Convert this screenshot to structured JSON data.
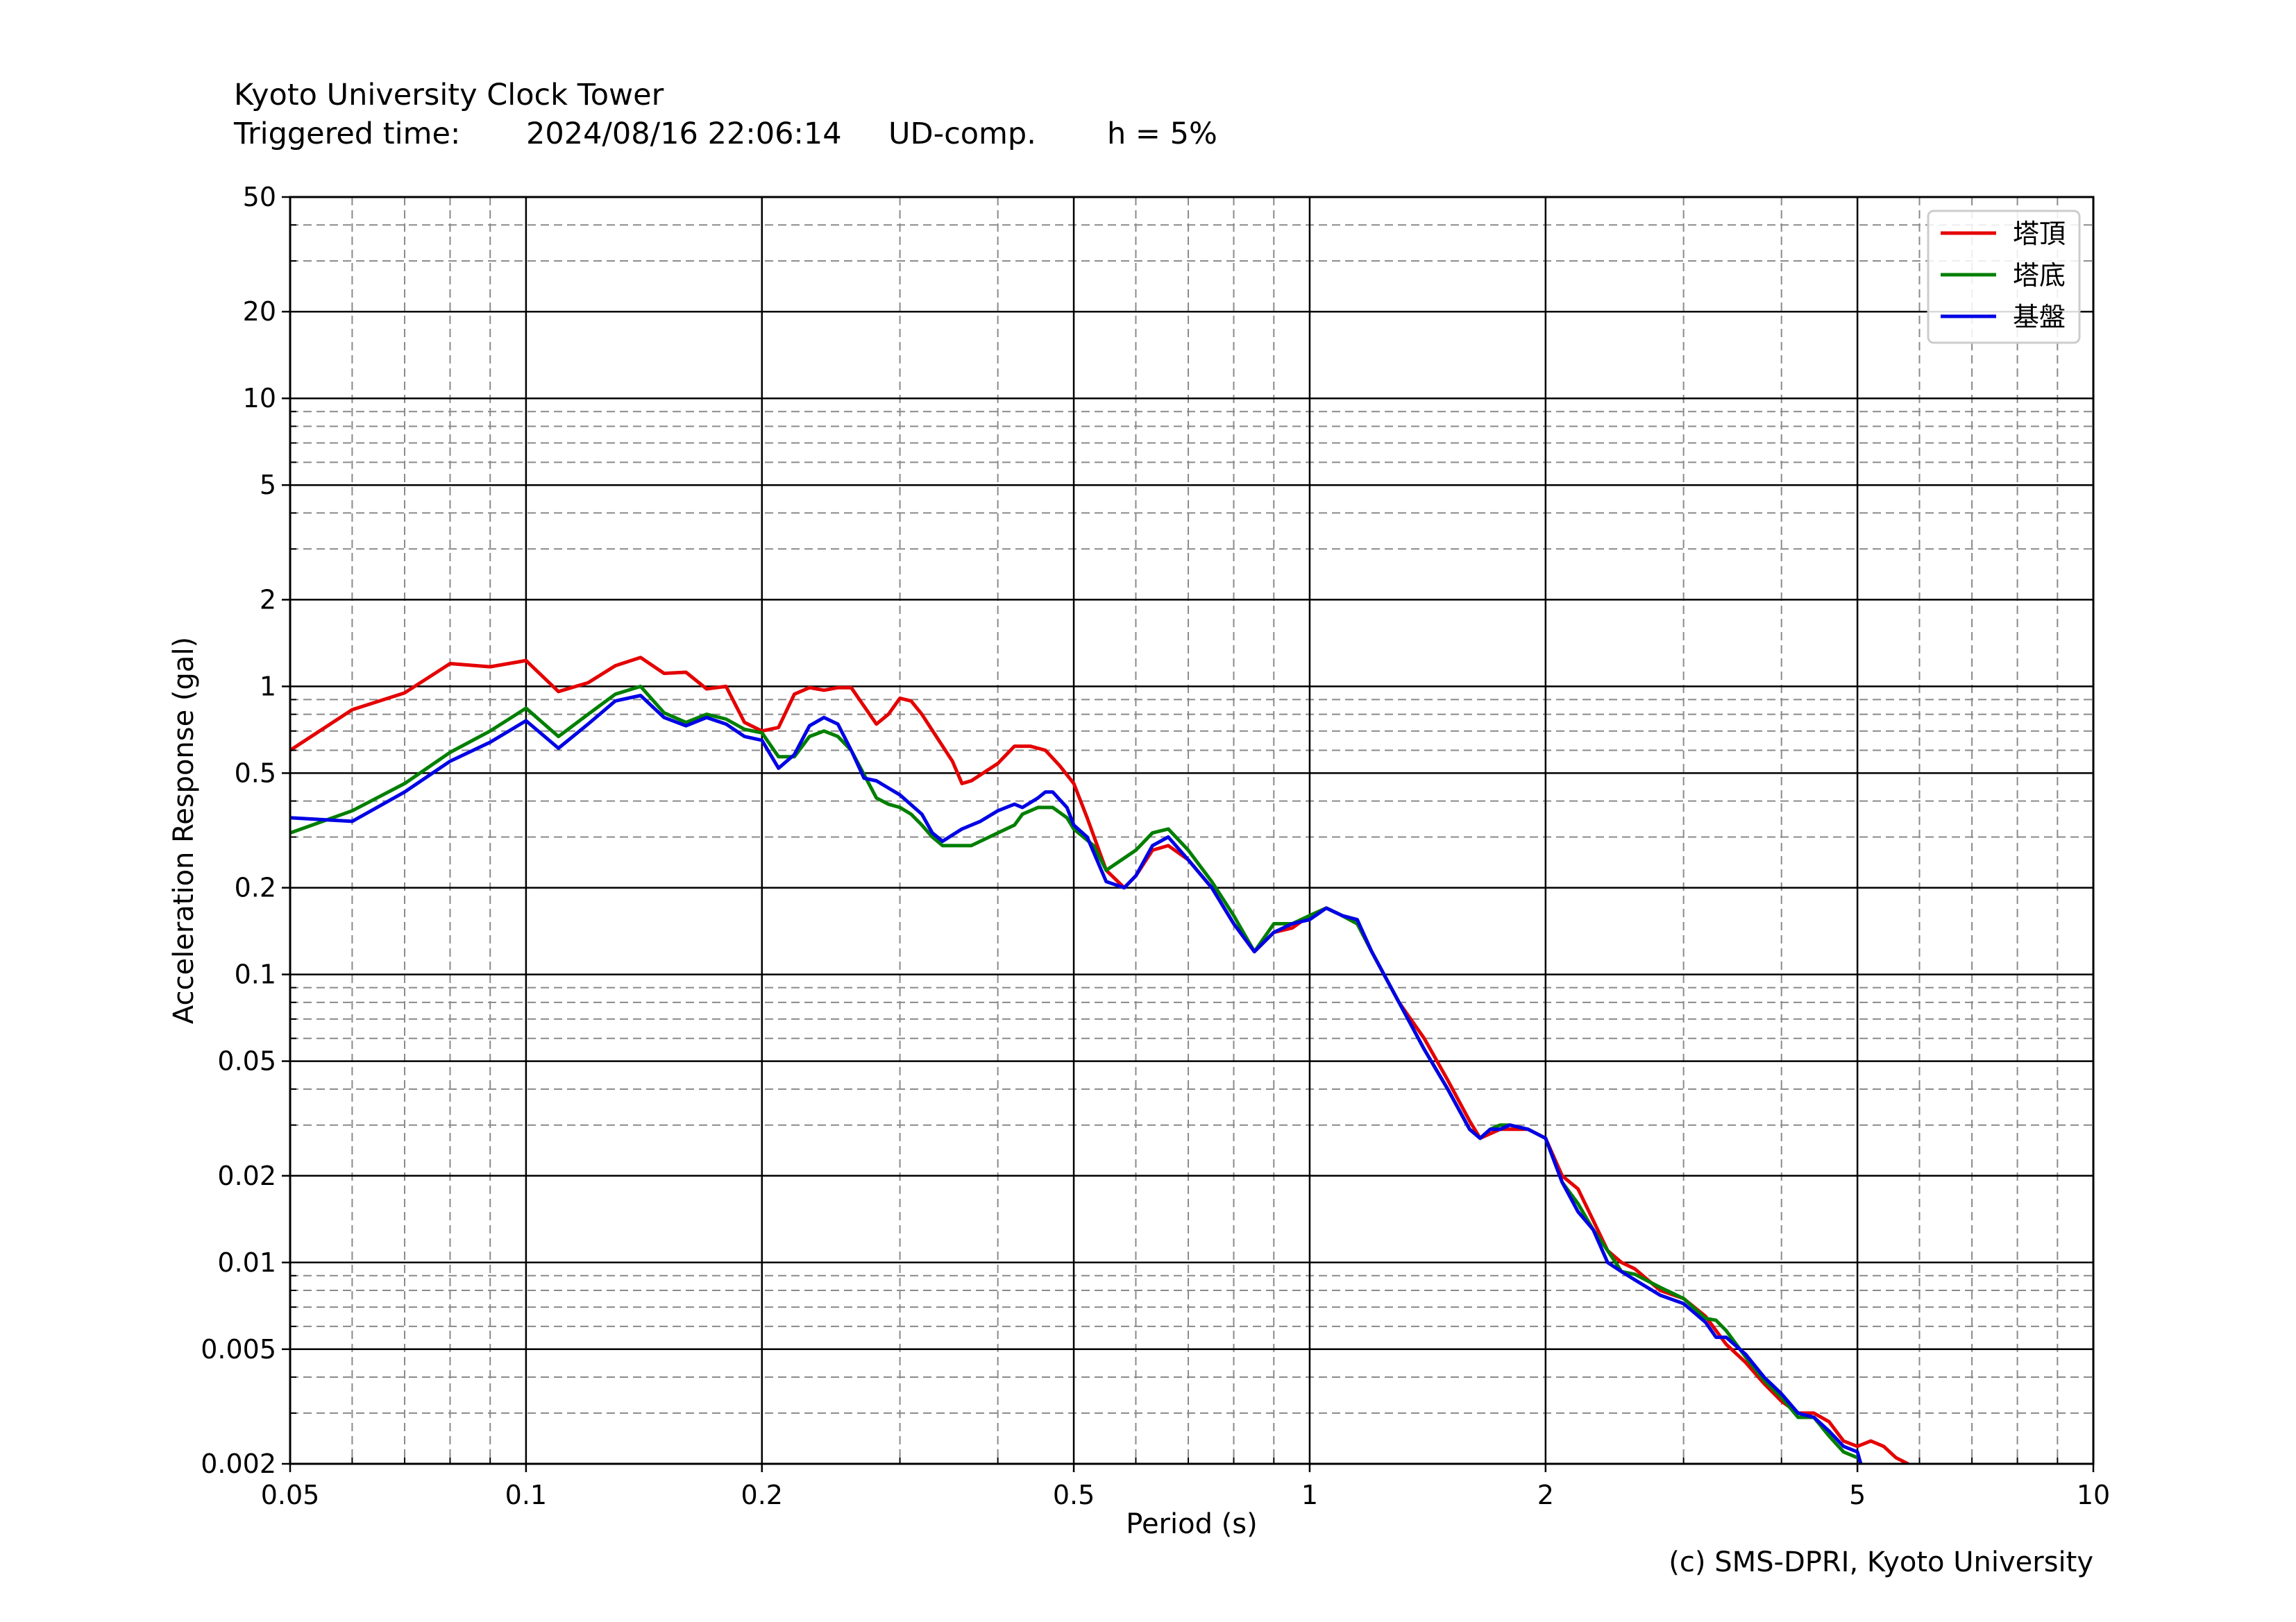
{
  "header": {
    "station": "Kyoto University Clock Tower",
    "triggered_label": "Triggered time:",
    "triggered_time": "2024/08/16 22:06:14",
    "component": "UD-comp.",
    "damping": "h = 5%"
  },
  "credit": "(c) SMS-DPRI, Kyoto University",
  "chart_data": {
    "type": "line",
    "title": "Kyoto University Clock Tower",
    "xlabel": "Period (s)",
    "ylabel": "Acceleration Response (gal)",
    "xscale": "log",
    "yscale": "log",
    "xlim": [
      0.05,
      10
    ],
    "ylim": [
      0.002,
      50
    ],
    "xticks": [
      0.05,
      0.1,
      0.2,
      0.5,
      1,
      2,
      5,
      10
    ],
    "xtick_labels": [
      "0.05",
      "0.1",
      "0.2",
      "0.5",
      "1",
      "2",
      "5",
      "10"
    ],
    "yticks": [
      0.002,
      0.005,
      0.01,
      0.02,
      0.05,
      0.1,
      0.2,
      0.5,
      1,
      2,
      5,
      10,
      20,
      50
    ],
    "ytick_labels": [
      "0.002",
      "0.005",
      "0.01",
      "0.02",
      "0.05",
      "0.1",
      "0.2",
      "0.5",
      "1",
      "2",
      "5",
      "10",
      "20",
      "50"
    ],
    "grid": true,
    "legend": "top-right",
    "series": [
      {
        "name": "塔頂",
        "color": "#e50000",
        "points": [
          [
            0.05,
            0.6
          ],
          [
            0.06,
            0.83
          ],
          [
            0.07,
            0.95
          ],
          [
            0.08,
            1.2
          ],
          [
            0.09,
            1.17
          ],
          [
            0.1,
            1.23
          ],
          [
            0.11,
            0.96
          ],
          [
            0.12,
            1.03
          ],
          [
            0.13,
            1.18
          ],
          [
            0.14,
            1.26
          ],
          [
            0.15,
            1.11
          ],
          [
            0.16,
            1.12
          ],
          [
            0.17,
            0.98
          ],
          [
            0.18,
            1.0
          ],
          [
            0.19,
            0.75
          ],
          [
            0.2,
            0.7
          ],
          [
            0.21,
            0.72
          ],
          [
            0.22,
            0.94
          ],
          [
            0.23,
            0.99
          ],
          [
            0.24,
            0.97
          ],
          [
            0.25,
            0.99
          ],
          [
            0.26,
            0.99
          ],
          [
            0.28,
            0.74
          ],
          [
            0.29,
            0.8
          ],
          [
            0.3,
            0.91
          ],
          [
            0.31,
            0.89
          ],
          [
            0.32,
            0.8
          ],
          [
            0.35,
            0.55
          ],
          [
            0.36,
            0.46
          ],
          [
            0.37,
            0.47
          ],
          [
            0.4,
            0.54
          ],
          [
            0.42,
            0.62
          ],
          [
            0.44,
            0.62
          ],
          [
            0.46,
            0.6
          ],
          [
            0.48,
            0.53
          ],
          [
            0.5,
            0.46
          ],
          [
            0.52,
            0.35
          ],
          [
            0.55,
            0.23
          ],
          [
            0.58,
            0.2
          ],
          [
            0.6,
            0.22
          ],
          [
            0.63,
            0.27
          ],
          [
            0.66,
            0.28
          ],
          [
            0.7,
            0.25
          ],
          [
            0.75,
            0.2
          ],
          [
            0.8,
            0.15
          ],
          [
            0.85,
            0.12
          ],
          [
            0.9,
            0.14
          ],
          [
            0.95,
            0.145
          ],
          [
            1.0,
            0.16
          ],
          [
            1.05,
            0.17
          ],
          [
            1.1,
            0.16
          ],
          [
            1.15,
            0.15
          ],
          [
            1.2,
            0.12
          ],
          [
            1.3,
            0.08
          ],
          [
            1.4,
            0.06
          ],
          [
            1.5,
            0.043
          ],
          [
            1.6,
            0.031
          ],
          [
            1.65,
            0.027
          ],
          [
            1.7,
            0.028
          ],
          [
            1.75,
            0.029
          ],
          [
            1.8,
            0.029
          ],
          [
            1.9,
            0.029
          ],
          [
            2.0,
            0.027
          ],
          [
            2.1,
            0.02
          ],
          [
            2.2,
            0.018
          ],
          [
            2.3,
            0.014
          ],
          [
            2.4,
            0.011
          ],
          [
            2.5,
            0.01
          ],
          [
            2.6,
            0.0095
          ],
          [
            2.8,
            0.008
          ],
          [
            3.0,
            0.0075
          ],
          [
            3.2,
            0.0065
          ],
          [
            3.4,
            0.0052
          ],
          [
            3.6,
            0.0045
          ],
          [
            3.8,
            0.0038
          ],
          [
            4.0,
            0.0033
          ],
          [
            4.2,
            0.003
          ],
          [
            4.4,
            0.003
          ],
          [
            4.6,
            0.0028
          ],
          [
            4.8,
            0.0024
          ],
          [
            5.0,
            0.0023
          ],
          [
            5.2,
            0.0024
          ],
          [
            5.4,
            0.0023
          ],
          [
            5.6,
            0.0021
          ],
          [
            5.8,
            0.002
          ]
        ]
      },
      {
        "name": "塔底",
        "color": "#007f00",
        "points": [
          [
            0.05,
            0.31
          ],
          [
            0.06,
            0.37
          ],
          [
            0.07,
            0.46
          ],
          [
            0.08,
            0.59
          ],
          [
            0.09,
            0.7
          ],
          [
            0.1,
            0.84
          ],
          [
            0.11,
            0.67
          ],
          [
            0.12,
            0.8
          ],
          [
            0.13,
            0.94
          ],
          [
            0.14,
            1.0
          ],
          [
            0.15,
            0.81
          ],
          [
            0.16,
            0.75
          ],
          [
            0.17,
            0.8
          ],
          [
            0.18,
            0.77
          ],
          [
            0.19,
            0.71
          ],
          [
            0.2,
            0.69
          ],
          [
            0.21,
            0.57
          ],
          [
            0.22,
            0.57
          ],
          [
            0.23,
            0.67
          ],
          [
            0.24,
            0.7
          ],
          [
            0.25,
            0.67
          ],
          [
            0.26,
            0.6
          ],
          [
            0.28,
            0.41
          ],
          [
            0.29,
            0.39
          ],
          [
            0.3,
            0.38
          ],
          [
            0.31,
            0.36
          ],
          [
            0.32,
            0.33
          ],
          [
            0.33,
            0.3
          ],
          [
            0.34,
            0.28
          ],
          [
            0.36,
            0.28
          ],
          [
            0.37,
            0.28
          ],
          [
            0.4,
            0.31
          ],
          [
            0.42,
            0.33
          ],
          [
            0.43,
            0.36
          ],
          [
            0.45,
            0.38
          ],
          [
            0.47,
            0.38
          ],
          [
            0.49,
            0.35
          ],
          [
            0.5,
            0.32
          ],
          [
            0.53,
            0.28
          ],
          [
            0.55,
            0.23
          ],
          [
            0.6,
            0.27
          ],
          [
            0.63,
            0.31
          ],
          [
            0.66,
            0.32
          ],
          [
            0.7,
            0.27
          ],
          [
            0.75,
            0.21
          ],
          [
            0.8,
            0.16
          ],
          [
            0.85,
            0.12
          ],
          [
            0.9,
            0.15
          ],
          [
            0.95,
            0.15
          ],
          [
            1.0,
            0.16
          ],
          [
            1.05,
            0.17
          ],
          [
            1.1,
            0.16
          ],
          [
            1.15,
            0.15
          ],
          [
            1.2,
            0.12
          ],
          [
            1.3,
            0.08
          ],
          [
            1.4,
            0.055
          ],
          [
            1.5,
            0.04
          ],
          [
            1.6,
            0.029
          ],
          [
            1.65,
            0.027
          ],
          [
            1.7,
            0.029
          ],
          [
            1.75,
            0.03
          ],
          [
            1.8,
            0.03
          ],
          [
            1.9,
            0.029
          ],
          [
            2.0,
            0.027
          ],
          [
            2.1,
            0.019
          ],
          [
            2.2,
            0.016
          ],
          [
            2.3,
            0.013
          ],
          [
            2.4,
            0.011
          ],
          [
            2.5,
            0.0093
          ],
          [
            2.6,
            0.0091
          ],
          [
            2.8,
            0.0082
          ],
          [
            3.0,
            0.0075
          ],
          [
            3.2,
            0.0064
          ],
          [
            3.3,
            0.0063
          ],
          [
            3.4,
            0.0058
          ],
          [
            3.6,
            0.0047
          ],
          [
            3.8,
            0.0039
          ],
          [
            4.0,
            0.0034
          ],
          [
            4.2,
            0.0029
          ],
          [
            4.4,
            0.0029
          ],
          [
            4.6,
            0.0025
          ],
          [
            4.8,
            0.0022
          ],
          [
            5.0,
            0.0021
          ]
        ]
      },
      {
        "name": "基盤",
        "color": "#0000e5",
        "points": [
          [
            0.05,
            0.35
          ],
          [
            0.06,
            0.34
          ],
          [
            0.07,
            0.43
          ],
          [
            0.08,
            0.55
          ],
          [
            0.09,
            0.64
          ],
          [
            0.1,
            0.76
          ],
          [
            0.11,
            0.61
          ],
          [
            0.12,
            0.74
          ],
          [
            0.13,
            0.89
          ],
          [
            0.14,
            0.93
          ],
          [
            0.15,
            0.78
          ],
          [
            0.16,
            0.73
          ],
          [
            0.17,
            0.78
          ],
          [
            0.18,
            0.74
          ],
          [
            0.19,
            0.67
          ],
          [
            0.2,
            0.65
          ],
          [
            0.21,
            0.52
          ],
          [
            0.22,
            0.58
          ],
          [
            0.23,
            0.73
          ],
          [
            0.24,
            0.78
          ],
          [
            0.25,
            0.74
          ],
          [
            0.26,
            0.6
          ],
          [
            0.27,
            0.48
          ],
          [
            0.28,
            0.47
          ],
          [
            0.3,
            0.42
          ],
          [
            0.32,
            0.36
          ],
          [
            0.33,
            0.31
          ],
          [
            0.34,
            0.29
          ],
          [
            0.36,
            0.32
          ],
          [
            0.38,
            0.34
          ],
          [
            0.4,
            0.37
          ],
          [
            0.42,
            0.39
          ],
          [
            0.43,
            0.38
          ],
          [
            0.45,
            0.41
          ],
          [
            0.46,
            0.43
          ],
          [
            0.47,
            0.43
          ],
          [
            0.49,
            0.38
          ],
          [
            0.5,
            0.33
          ],
          [
            0.52,
            0.3
          ],
          [
            0.55,
            0.21
          ],
          [
            0.58,
            0.2
          ],
          [
            0.6,
            0.22
          ],
          [
            0.63,
            0.28
          ],
          [
            0.66,
            0.3
          ],
          [
            0.7,
            0.25
          ],
          [
            0.75,
            0.2
          ],
          [
            0.8,
            0.15
          ],
          [
            0.85,
            0.12
          ],
          [
            0.9,
            0.14
          ],
          [
            0.95,
            0.15
          ],
          [
            1.0,
            0.155
          ],
          [
            1.05,
            0.17
          ],
          [
            1.1,
            0.16
          ],
          [
            1.15,
            0.155
          ],
          [
            1.2,
            0.12
          ],
          [
            1.3,
            0.08
          ],
          [
            1.4,
            0.055
          ],
          [
            1.5,
            0.04
          ],
          [
            1.6,
            0.029
          ],
          [
            1.65,
            0.027
          ],
          [
            1.7,
            0.029
          ],
          [
            1.75,
            0.029
          ],
          [
            1.8,
            0.03
          ],
          [
            1.9,
            0.029
          ],
          [
            2.0,
            0.027
          ],
          [
            2.1,
            0.019
          ],
          [
            2.2,
            0.015
          ],
          [
            2.3,
            0.013
          ],
          [
            2.4,
            0.01
          ],
          [
            2.5,
            0.0093
          ],
          [
            2.6,
            0.0087
          ],
          [
            2.8,
            0.0077
          ],
          [
            3.0,
            0.0072
          ],
          [
            3.2,
            0.0062
          ],
          [
            3.3,
            0.0055
          ],
          [
            3.4,
            0.0055
          ],
          [
            3.6,
            0.0048
          ],
          [
            3.8,
            0.004
          ],
          [
            4.0,
            0.0035
          ],
          [
            4.2,
            0.003
          ],
          [
            4.4,
            0.0029
          ],
          [
            4.6,
            0.0026
          ],
          [
            4.8,
            0.0023
          ],
          [
            5.0,
            0.0022
          ],
          [
            5.05,
            0.002
          ]
        ]
      }
    ]
  }
}
